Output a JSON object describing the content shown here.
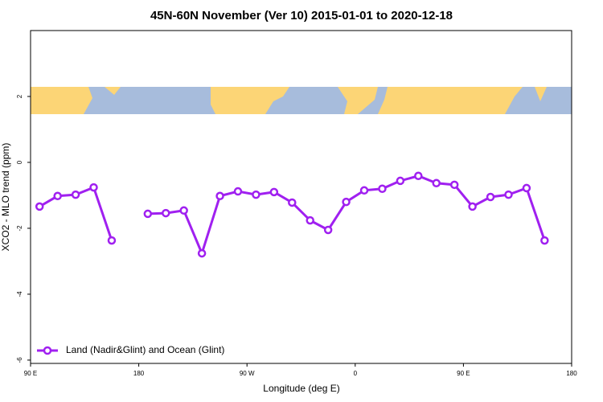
{
  "chart_data": {
    "type": "line",
    "title": "45N-60N November (Ver 10)   2015-01-01 to 2020-12-18",
    "x_label": "Longitude (deg E)",
    "y_label": "XCO2 - MLO trend (ppm)",
    "x": [
      97.5,
      112.5,
      127.5,
      142.5,
      157.5,
      172.5,
      187.5,
      202.5,
      217.5,
      232.5,
      247.5,
      262.5,
      277.5,
      292.5,
      307.5,
      322.5,
      337.5,
      352.5,
      367.5,
      382.5,
      397.5,
      412.5,
      427.5,
      442.5,
      457.5,
      472.5,
      487.5,
      502.5,
      517.5
    ],
    "series": [
      {
        "name": "Land (Nadir&Glint) and Ocean (Glint)",
        "color": "#a020f0",
        "values": [
          -1.34,
          -1.02,
          -0.98,
          -0.76,
          -2.37,
          null,
          -1.56,
          -1.54,
          -1.46,
          -2.76,
          -1.02,
          -0.88,
          -0.98,
          -0.9,
          -1.22,
          -1.76,
          -2.05,
          -1.2,
          -0.85,
          -0.8,
          -0.56,
          -0.41,
          -0.63,
          -0.68,
          -1.34,
          -1.05,
          -0.98,
          -0.78,
          -2.37
        ]
      }
    ],
    "xlim": [
      90,
      540
    ],
    "xticks": [
      {
        "value": 90,
        "label": "90 E"
      },
      180,
      {
        "value": 270,
        "label": "90 W"
      },
      {
        "value": 360,
        "label": "0"
      },
      {
        "value": 450,
        "label": "90 E"
      },
      {
        "value": 540,
        "label": "180"
      }
    ],
    "ylim": [
      -6.1,
      4
    ],
    "yticks": [
      -6,
      -4,
      -2,
      0,
      2
    ],
    "legend": "bottom-left"
  }
}
